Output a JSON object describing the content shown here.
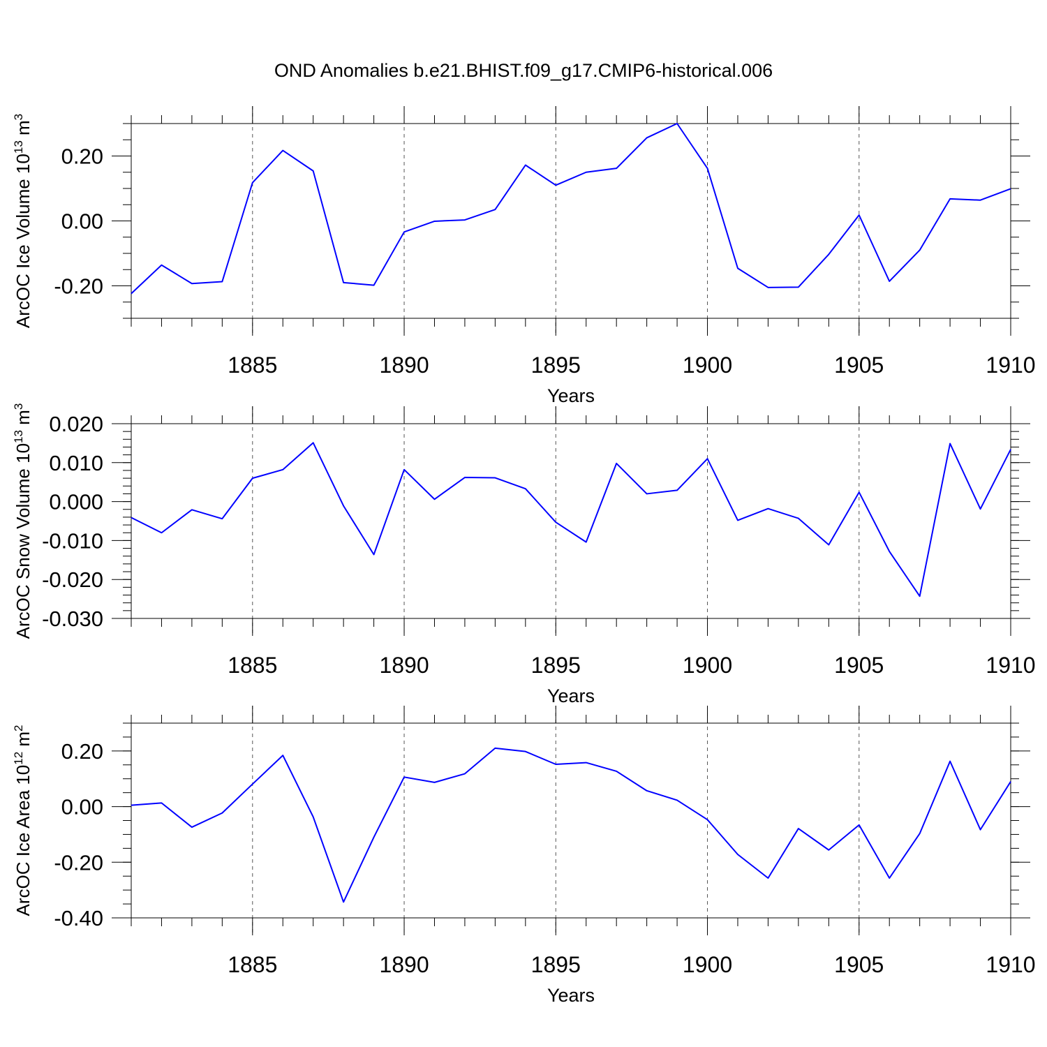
{
  "title": "OND Anomalies b.e21.BHIST.f09_g17.CMIP6-historical.006",
  "colors": {
    "line": "#0000ff",
    "axis": "#000000",
    "grid": "#555555"
  },
  "chart_data": [
    {
      "type": "line",
      "ylabel": "ArcOC Ice Volume 10",
      "ylabel_exp": "13",
      "ylabel_unit": " m",
      "ylabel_unit_exp": "3",
      "xlabel": "Years",
      "xlim": [
        1881,
        1910
      ],
      "ylim": [
        -0.3,
        0.3
      ],
      "yticks": [
        -0.2,
        0.0,
        0.2
      ],
      "ytick_labels": [
        "-0.20",
        "0.00",
        "0.20"
      ],
      "yminor_step": 0.05,
      "xticks": [
        1885,
        1890,
        1895,
        1900,
        1905,
        1910
      ],
      "xtick_labels": [
        "1885",
        "1890",
        "1895",
        "1900",
        "1905",
        "1910"
      ],
      "grid_x": [
        1885,
        1890,
        1895,
        1900,
        1905
      ],
      "x": [
        1881,
        1882,
        1883,
        1884,
        1885,
        1886,
        1887,
        1888,
        1889,
        1890,
        1891,
        1892,
        1893,
        1894,
        1895,
        1896,
        1897,
        1898,
        1899,
        1900,
        1901,
        1902,
        1903,
        1904,
        1905,
        1906,
        1907,
        1908,
        1909,
        1910
      ],
      "values": [
        -0.224,
        -0.136,
        -0.193,
        -0.187,
        0.118,
        0.217,
        0.154,
        -0.19,
        -0.198,
        -0.034,
        -0.001,
        0.003,
        0.035,
        0.172,
        0.11,
        0.15,
        0.162,
        0.256,
        0.3,
        0.162,
        -0.146,
        -0.205,
        -0.204,
        -0.103,
        0.018,
        -0.186,
        -0.09,
        0.068,
        0.064,
        0.099
      ]
    },
    {
      "type": "line",
      "ylabel": "ArcOC Snow Volume 10",
      "ylabel_exp": "13",
      "ylabel_unit": " m",
      "ylabel_unit_exp": "3",
      "xlabel": "Years",
      "xlim": [
        1881,
        1910
      ],
      "ylim": [
        -0.03,
        0.02
      ],
      "yticks": [
        -0.03,
        -0.02,
        -0.01,
        0.0,
        0.01,
        0.02
      ],
      "ytick_labels": [
        "-0.030",
        "-0.020",
        "-0.010",
        "0.000",
        "0.010",
        "0.020"
      ],
      "yminor_step": 0.002,
      "xticks": [
        1885,
        1890,
        1895,
        1900,
        1905,
        1910
      ],
      "xtick_labels": [
        "1885",
        "1890",
        "1895",
        "1900",
        "1905",
        "1910"
      ],
      "grid_x": [
        1885,
        1890,
        1895,
        1900,
        1905
      ],
      "x": [
        1881,
        1882,
        1883,
        1884,
        1885,
        1886,
        1887,
        1888,
        1889,
        1890,
        1891,
        1892,
        1893,
        1894,
        1895,
        1896,
        1897,
        1898,
        1899,
        1900,
        1901,
        1902,
        1903,
        1904,
        1905,
        1906,
        1907,
        1908,
        1909,
        1910
      ],
      "values": [
        -0.0041,
        -0.008,
        -0.0021,
        -0.0044,
        0.006,
        0.0082,
        0.0151,
        -0.0011,
        -0.0136,
        0.0082,
        0.0006,
        0.0062,
        0.0061,
        0.0033,
        -0.0053,
        -0.0104,
        0.0098,
        0.002,
        0.0029,
        0.011,
        -0.0048,
        -0.0018,
        -0.0043,
        -0.0111,
        0.0024,
        -0.0128,
        -0.0243,
        0.0149,
        -0.0019,
        0.0134
      ]
    },
    {
      "type": "line",
      "ylabel": "ArcOC Ice Area 10",
      "ylabel_exp": "12",
      "ylabel_unit": " m",
      "ylabel_unit_exp": "2",
      "xlabel": "Years",
      "xlim": [
        1881,
        1910
      ],
      "ylim": [
        -0.4,
        0.3
      ],
      "yticks": [
        -0.4,
        -0.2,
        0.0,
        0.2
      ],
      "ytick_labels": [
        "-0.40",
        "-0.20",
        "0.00",
        "0.20"
      ],
      "yminor_step": 0.05,
      "xticks": [
        1885,
        1890,
        1895,
        1900,
        1905,
        1910
      ],
      "xtick_labels": [
        "1885",
        "1890",
        "1895",
        "1900",
        "1905",
        "1910"
      ],
      "grid_x": [
        1885,
        1890,
        1895,
        1900,
        1905
      ],
      "x": [
        1881,
        1882,
        1883,
        1884,
        1885,
        1886,
        1887,
        1888,
        1889,
        1890,
        1891,
        1892,
        1893,
        1894,
        1895,
        1896,
        1897,
        1898,
        1899,
        1900,
        1901,
        1902,
        1903,
        1904,
        1905,
        1906,
        1907,
        1908,
        1909,
        1910
      ],
      "values": [
        0.005,
        0.013,
        -0.074,
        -0.023,
        0.081,
        0.184,
        -0.037,
        -0.343,
        -0.11,
        0.106,
        0.087,
        0.118,
        0.21,
        0.198,
        0.152,
        0.158,
        0.127,
        0.057,
        0.023,
        -0.047,
        -0.172,
        -0.257,
        -0.079,
        -0.156,
        -0.066,
        -0.257,
        -0.097,
        0.163,
        -0.083,
        0.09
      ]
    }
  ]
}
